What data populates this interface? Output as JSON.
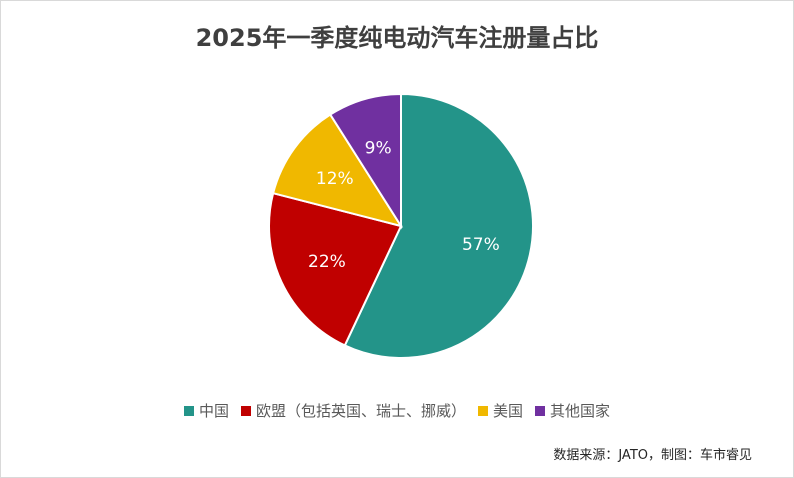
{
  "chart_data": {
    "type": "pie",
    "title": "2025年一季度纯电动汽车注册量占比",
    "categories": [
      "中国",
      "欧盟（包括英国、瑞士、挪威）",
      "美国",
      "其他国家"
    ],
    "values": [
      57,
      22,
      12,
      9
    ],
    "labels": [
      "57%",
      "22%",
      "12%",
      "9%"
    ],
    "colors": [
      "#239489",
      "#c00000",
      "#f0b800",
      "#7030a0"
    ],
    "legend_position": "bottom"
  },
  "source_note": "数据来源：JATO，制图：车市睿见"
}
